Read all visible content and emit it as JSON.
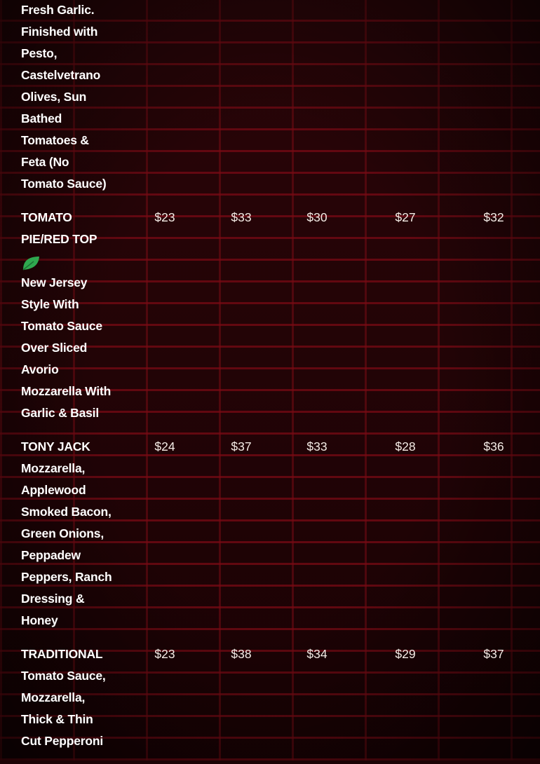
{
  "items": [
    {
      "name": "",
      "description": "Fresh Garlic. Finished with Pesto, Castelvetrano Olives, Sun Bathed Tomatoes & Feta (No Tomato Sauce)",
      "prices": []
    },
    {
      "name": "TOMATO PIE/RED TOP",
      "vegetarian_icon": "leaf-icon",
      "description": "New Jersey Style With Tomato Sauce Over Sliced Avorio Mozzarella With Garlic & Basil",
      "prices": [
        "$23",
        "$33",
        "$30",
        "$27",
        "$32"
      ]
    },
    {
      "name": "TONY JACK",
      "description": "Mozzarella, Applewood Smoked Bacon, Green Onions, Peppadew Peppers, Ranch Dressing & Honey",
      "prices": [
        "$24",
        "$37",
        "$33",
        "$28",
        "$36"
      ]
    },
    {
      "name": "TRADITIONAL",
      "description": "Tomato Sauce, Mozzarella, Thick & Thin Cut Pepperoni",
      "prices": [
        "$23",
        "$38",
        "$34",
        "$29",
        "$37"
      ]
    }
  ],
  "colors": {
    "leaf": "#2fa84f",
    "background": "#2a0508"
  }
}
